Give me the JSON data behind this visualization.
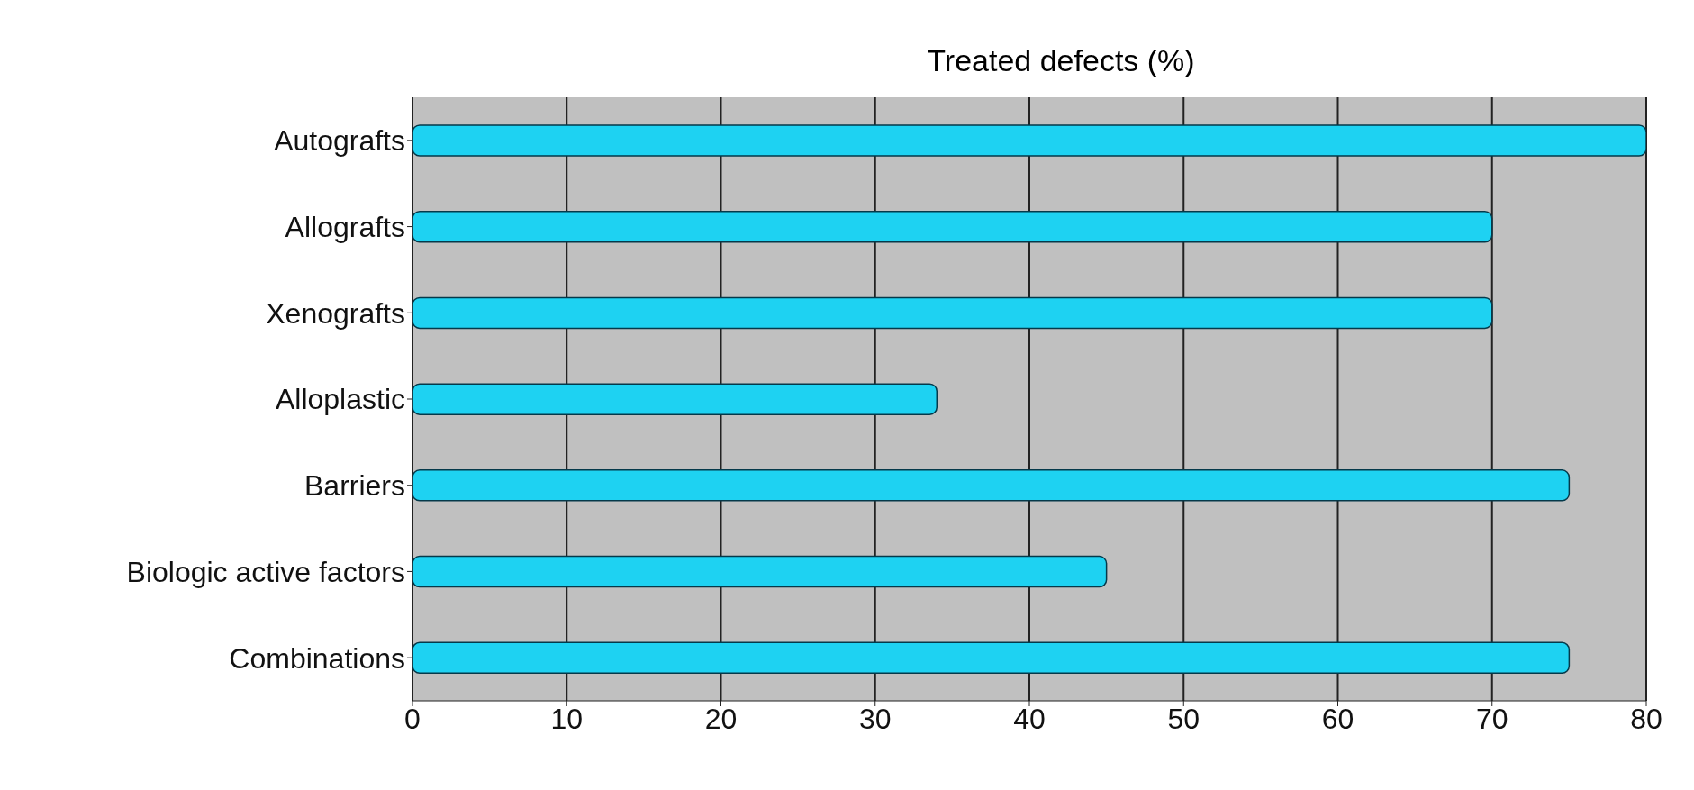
{
  "chart_data": {
    "type": "bar",
    "orientation": "horizontal",
    "title": "Treated defects (%)",
    "categories": [
      "Autografts",
      "Allografts",
      "Xenografts",
      "Alloplastic",
      "Barriers",
      "Biologic active factors",
      "Combinations"
    ],
    "values": [
      80,
      70,
      70,
      34,
      75,
      45,
      75
    ],
    "color": "#1ed2f2",
    "xlim": [
      0,
      80
    ],
    "xticks": [
      0,
      10,
      20,
      30,
      40,
      50,
      60,
      70,
      80
    ],
    "grid": "x"
  }
}
